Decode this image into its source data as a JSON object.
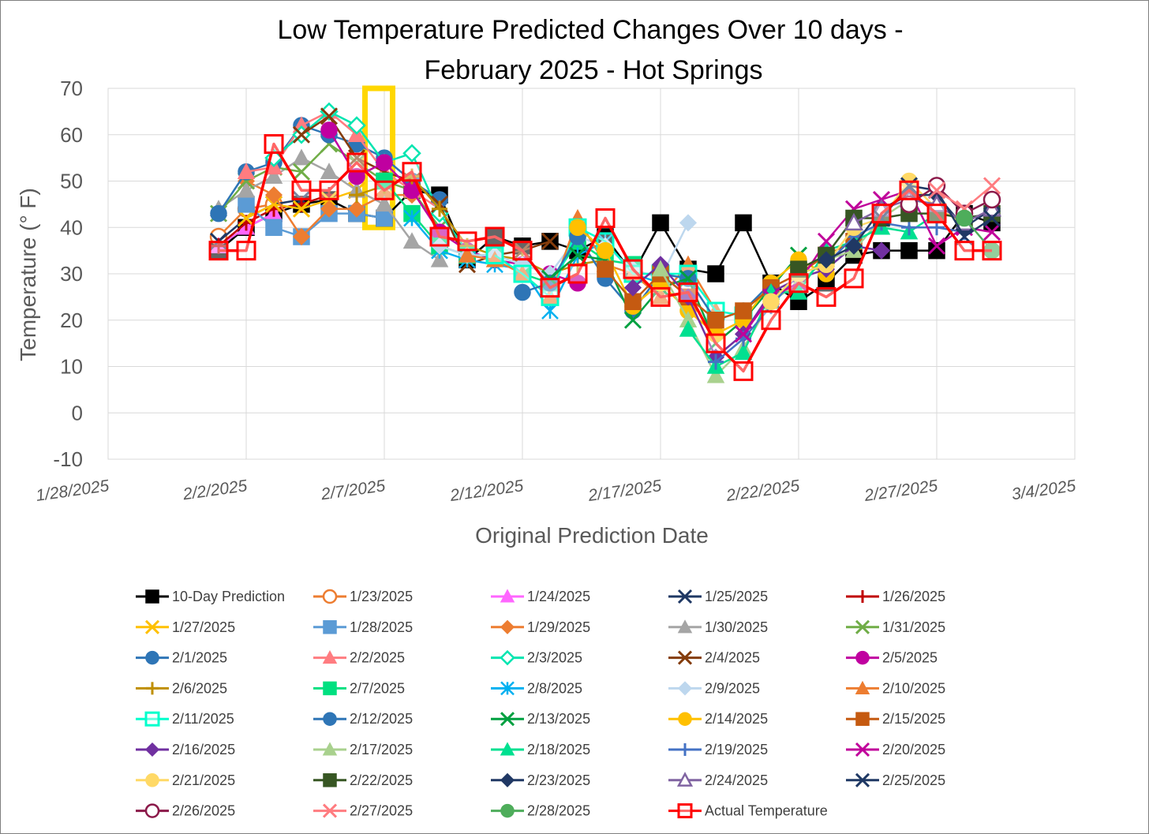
{
  "chart_data": {
    "type": "line",
    "title": "Low Temperature Predicted Changes Over 10 days -",
    "title_line2": "February 2025 - Hot Springs",
    "xlabel": "Original Prediction Date",
    "ylabel": "Temperature (° F)",
    "ylim": [
      -10,
      70
    ],
    "yticks": [
      -10,
      0,
      10,
      20,
      30,
      40,
      50,
      60,
      70
    ],
    "x_range_days": [
      0,
      35
    ],
    "xticks": [
      {
        "day": 0,
        "label": "1/28/2025"
      },
      {
        "day": 5,
        "label": "2/2/2025"
      },
      {
        "day": 10,
        "label": "2/7/2025"
      },
      {
        "day": 15,
        "label": "2/12/2025"
      },
      {
        "day": 20,
        "label": "2/17/2025"
      },
      {
        "day": 25,
        "label": "2/22/2025"
      },
      {
        "day": 30,
        "label": "2/27/2025"
      },
      {
        "day": 35,
        "label": "3/4/2025"
      }
    ],
    "x_day_zero": "1/28/2025",
    "grid": true,
    "legend_position": "bottom",
    "highlight": {
      "day_from": 9.3,
      "day_to": 10.3,
      "y_from": 40,
      "y_to": 70,
      "color": "#ffd700"
    },
    "series": [
      {
        "name": "10-Day Prediction",
        "color": "#000000",
        "marker": "square",
        "x": [
          4,
          5,
          6,
          7,
          8,
          9,
          10,
          11,
          12,
          13,
          14,
          15,
          16,
          17,
          18,
          19,
          20,
          21,
          22,
          23,
          24,
          25,
          26,
          27,
          28,
          29,
          30,
          31,
          32
        ],
        "values": [
          35,
          40,
          43,
          45,
          46,
          43,
          42,
          48,
          47,
          33,
          38,
          36,
          37,
          35,
          38,
          30,
          41,
          31,
          30,
          41,
          28,
          24,
          28,
          34,
          35,
          35,
          35,
          43,
          41
        ]
      },
      {
        "name": "1/23/2025",
        "color": "#ed7d31",
        "marker": "circle-open",
        "x": [
          4,
          5,
          6
        ],
        "values": [
          38,
          44,
          45
        ]
      },
      {
        "name": "1/24/2025",
        "color": "#ff66ff",
        "marker": "triangle",
        "x": [
          4,
          5,
          6
        ],
        "values": [
          36,
          40,
          43
        ]
      },
      {
        "name": "1/25/2025",
        "color": "#1f3864",
        "marker": "x",
        "x": [
          4,
          5,
          6,
          7
        ],
        "values": [
          37,
          42,
          45,
          46
        ]
      },
      {
        "name": "1/26/2025",
        "color": "#c00000",
        "marker": "plus",
        "x": [
          4,
          5,
          6,
          7,
          8
        ],
        "values": [
          36,
          41,
          44,
          45,
          47
        ]
      },
      {
        "name": "1/27/2025",
        "color": "#ffc000",
        "marker": "x",
        "x": [
          5,
          6,
          7,
          8,
          9
        ],
        "values": [
          42,
          45,
          44,
          46,
          48
        ]
      },
      {
        "name": "1/28/2025",
        "color": "#5b9bd5",
        "marker": "square",
        "x": [
          5,
          6,
          7,
          8,
          9,
          10
        ],
        "values": [
          45,
          40,
          38,
          43,
          43,
          42
        ]
      },
      {
        "name": "1/29/2025",
        "color": "#ed7d31",
        "marker": "diamond",
        "x": [
          5,
          6,
          7,
          8,
          9,
          10,
          11
        ],
        "values": [
          50,
          47,
          38,
          44,
          44,
          47,
          47
        ]
      },
      {
        "name": "1/30/2025",
        "color": "#a5a5a5",
        "marker": "triangle",
        "x": [
          4,
          5,
          6,
          7,
          8,
          9,
          10,
          11,
          12
        ],
        "values": [
          44,
          48,
          51,
          55,
          52,
          48,
          45,
          37,
          33
        ]
      },
      {
        "name": "1/31/2025",
        "color": "#70ad47",
        "marker": "x",
        "x": [
          4,
          5,
          6,
          7,
          8,
          9,
          10,
          11,
          12
        ],
        "values": [
          43,
          50,
          53,
          52,
          58,
          54,
          50,
          48,
          40
        ]
      },
      {
        "name": "2/1/2025",
        "color": "#2e75b6",
        "marker": "circle",
        "x": [
          4,
          5,
          6,
          7,
          8,
          9,
          10,
          11,
          12
        ],
        "values": [
          43,
          52,
          54,
          62,
          60,
          58,
          55,
          50,
          46
        ]
      },
      {
        "name": "2/2/2025",
        "color": "#ff7c80",
        "marker": "triangle",
        "x": [
          5,
          6,
          7,
          8,
          9,
          10,
          11,
          12
        ],
        "values": [
          52,
          53,
          62,
          65,
          60,
          52,
          48,
          44
        ]
      },
      {
        "name": "2/3/2025",
        "color": "#00e5b0",
        "marker": "diamond-open",
        "x": [
          6,
          7,
          8,
          9,
          10,
          11,
          12,
          13
        ],
        "values": [
          55,
          60,
          65,
          62,
          54,
          56,
          43,
          35
        ]
      },
      {
        "name": "2/4/2025",
        "color": "#843c0c",
        "marker": "x",
        "x": [
          7,
          8,
          9,
          10,
          11,
          12,
          13,
          14,
          15,
          16
        ],
        "values": [
          60,
          64,
          55,
          52,
          50,
          45,
          32,
          34,
          35,
          37
        ]
      },
      {
        "name": "2/5/2025",
        "color": "#c000a0",
        "marker": "circle",
        "x": [
          8,
          9,
          10,
          11,
          12,
          13,
          14,
          15,
          16,
          17
        ],
        "values": [
          61,
          51,
          54,
          48,
          39,
          35,
          33,
          32,
          30,
          28
        ]
      },
      {
        "name": "2/6/2025",
        "color": "#bf8f00",
        "marker": "plus",
        "x": [
          9,
          10,
          11,
          12,
          13,
          14,
          15,
          16,
          17,
          18
        ],
        "values": [
          47,
          49,
          51,
          44,
          36,
          34,
          33,
          30,
          32,
          33
        ]
      },
      {
        "name": "2/7/2025",
        "color": "#00e080",
        "marker": "square",
        "x": [
          10,
          11,
          12,
          13,
          14,
          15,
          16,
          17,
          18,
          19
        ],
        "values": [
          50,
          43,
          36,
          34,
          34,
          30,
          28,
          37,
          33,
          32
        ]
      },
      {
        "name": "2/8/2025",
        "color": "#00b0f0",
        "marker": "asterisk",
        "x": [
          11,
          12,
          13,
          14,
          15,
          16,
          17,
          18,
          19,
          20
        ],
        "values": [
          42,
          35,
          33,
          32,
          31,
          22,
          34,
          37,
          30,
          28
        ]
      },
      {
        "name": "2/9/2025",
        "color": "#bdd7ee",
        "marker": "diamond",
        "x": [
          12,
          13,
          14,
          15,
          16,
          17,
          18,
          19,
          20,
          21
        ],
        "values": [
          36,
          34,
          34,
          32,
          30,
          38,
          36,
          31,
          29,
          41
        ]
      },
      {
        "name": "2/10/2025",
        "color": "#ed7d31",
        "marker": "triangle",
        "x": [
          13,
          14,
          15,
          16,
          17,
          18,
          19,
          20,
          21,
          22
        ],
        "values": [
          34,
          33,
          30,
          25,
          42,
          32,
          30,
          25,
          32,
          22
        ]
      },
      {
        "name": "2/11/2025",
        "color": "#00ffcc",
        "marker": "square-open",
        "x": [
          14,
          15,
          16,
          17,
          18,
          19,
          20,
          21,
          22,
          23
        ],
        "values": [
          34,
          30,
          25,
          40,
          37,
          30,
          30,
          30,
          22,
          21
        ]
      },
      {
        "name": "2/12/2025",
        "color": "#2e75b6",
        "marker": "circle",
        "x": [
          15,
          16,
          17,
          18,
          19,
          20,
          21,
          22,
          23,
          24
        ],
        "values": [
          26,
          28,
          38,
          29,
          22,
          30,
          29,
          20,
          22,
          28
        ]
      },
      {
        "name": "2/13/2025",
        "color": "#00a040",
        "marker": "x",
        "x": [
          16,
          17,
          18,
          19,
          20,
          21,
          22,
          23,
          24,
          25
        ],
        "values": [
          29,
          34,
          33,
          20,
          27,
          29,
          15,
          20,
          27,
          34
        ]
      },
      {
        "name": "2/14/2025",
        "color": "#ffc000",
        "marker": "circle",
        "x": [
          17,
          18,
          19,
          20,
          21,
          22,
          23,
          24,
          25,
          26
        ],
        "values": [
          40,
          35,
          23,
          28,
          22,
          17,
          20,
          28,
          33,
          30
        ]
      },
      {
        "name": "2/15/2025",
        "color": "#c55a11",
        "marker": "square",
        "x": [
          18,
          19,
          20,
          21,
          22,
          23,
          24,
          25,
          26,
          27
        ],
        "values": [
          31,
          24,
          30,
          25,
          20,
          22,
          27,
          30,
          34,
          37
        ]
      },
      {
        "name": "2/16/2025",
        "color": "#7030a0",
        "marker": "diamond",
        "x": [
          19,
          20,
          21,
          22,
          23,
          24,
          25,
          26,
          27,
          28
        ],
        "values": [
          27,
          32,
          25,
          12,
          17,
          26,
          29,
          31,
          36,
          35
        ]
      },
      {
        "name": "2/17/2025",
        "color": "#a9d18e",
        "marker": "triangle",
        "x": [
          20,
          21,
          22,
          23,
          24,
          25,
          26,
          27,
          28,
          29
        ],
        "values": [
          31,
          20,
          8,
          14,
          24,
          28,
          33,
          35,
          42,
          46
        ]
      },
      {
        "name": "2/18/2025",
        "color": "#00e090",
        "marker": "triangle",
        "x": [
          21,
          22,
          23,
          24,
          25,
          26,
          27,
          28,
          29,
          30
        ],
        "values": [
          18,
          10,
          13,
          26,
          26,
          35,
          37,
          40,
          39,
          43
        ]
      },
      {
        "name": "2/19/2025",
        "color": "#4472c4",
        "marker": "plus",
        "x": [
          22,
          23,
          24,
          25,
          26,
          27,
          28,
          29,
          30,
          31
        ],
        "values": [
          11,
          16,
          23,
          30,
          32,
          38,
          41,
          40,
          40,
          39
        ]
      },
      {
        "name": "2/20/2025",
        "color": "#c0009a",
        "marker": "x",
        "x": [
          23,
          24,
          25,
          26,
          27,
          28,
          29,
          30,
          31,
          32
        ],
        "values": [
          17,
          25,
          28,
          37,
          44,
          46,
          48,
          36,
          40,
          39
        ]
      },
      {
        "name": "2/21/2025",
        "color": "#ffd966",
        "marker": "circle",
        "x": [
          24,
          25,
          26,
          27,
          28,
          29,
          30,
          31
        ],
        "values": [
          24,
          30,
          32,
          40,
          42,
          50,
          44,
          41
        ]
      },
      {
        "name": "2/22/2025",
        "color": "#375623",
        "marker": "square",
        "x": [
          25,
          26,
          27,
          28,
          29,
          30,
          31,
          32
        ],
        "values": [
          31,
          34,
          42,
          42,
          43,
          43,
          42,
          43
        ]
      },
      {
        "name": "2/23/2025",
        "color": "#203864",
        "marker": "diamond",
        "x": [
          26,
          27,
          28,
          29,
          30,
          31,
          32
        ],
        "values": [
          33,
          36,
          44,
          47,
          47,
          40,
          44
        ]
      },
      {
        "name": "2/24/2025",
        "color": "#8064a2",
        "marker": "triangle-open",
        "x": [
          27,
          28,
          29,
          30,
          31,
          32
        ],
        "values": [
          41,
          44,
          46,
          45,
          41,
          44
        ]
      },
      {
        "name": "2/25/2025",
        "color": "#1f3864",
        "marker": "x",
        "x": [
          28,
          29,
          30,
          31,
          32
        ],
        "values": [
          42,
          49,
          48,
          38,
          42
        ]
      },
      {
        "name": "2/26/2025",
        "color": "#8b1a4a",
        "marker": "circle-open",
        "x": [
          29,
          30,
          31,
          32
        ],
        "values": [
          45,
          49,
          43,
          46
        ]
      },
      {
        "name": "2/27/2025",
        "color": "#ff7c80",
        "marker": "x",
        "x": [
          30,
          31,
          32
        ],
        "values": [
          48,
          44,
          49
        ]
      },
      {
        "name": "2/28/2025",
        "color": "#4ead5b",
        "marker": "circle",
        "x": [
          31,
          32
        ],
        "values": [
          42,
          35
        ]
      },
      {
        "name": "Actual Temperature",
        "color": "#ff0000",
        "marker": "square-open",
        "x": [
          4,
          5,
          6,
          7,
          8,
          9,
          10,
          11,
          12,
          13,
          14,
          15,
          16,
          17,
          18,
          19,
          20,
          21,
          22,
          23,
          24,
          25,
          26,
          27,
          28,
          29,
          30,
          31,
          32
        ],
        "values": [
          35,
          35,
          58,
          48,
          48,
          54,
          48,
          52,
          38,
          37,
          38,
          35,
          27,
          30,
          42,
          31,
          25,
          26,
          15,
          9,
          20,
          28,
          25,
          29,
          43,
          48,
          43,
          35,
          35
        ]
      }
    ]
  }
}
